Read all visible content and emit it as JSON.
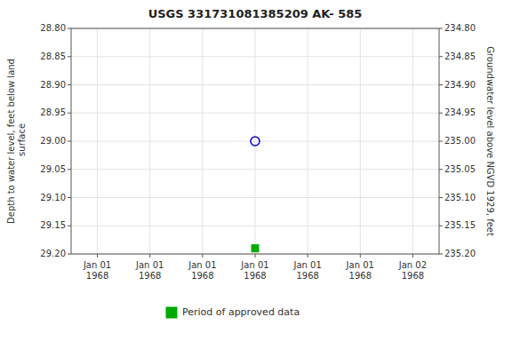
{
  "chart_data": {
    "type": "scatter",
    "title": "USGS 331731081385209 AK- 585",
    "y_label": "Depth to water level, feet below land\n surface",
    "y2_label": "Groundwater level above NGVD 1929, feet",
    "categories": [
      "Jan 01\n1968",
      "Jan 01\n1968",
      "Jan 01\n1968",
      "Jan 01\n1968",
      "Jan 01\n1968",
      "Jan 01\n1968",
      "Jan 02\n1968"
    ],
    "series": [
      {
        "values": [
          null,
          null,
          null,
          29.0,
          null,
          null,
          null
        ],
        "color": "#0000cc",
        "marker": "open-circle"
      },
      {
        "name": "Period of approved data",
        "values": [
          null,
          null,
          null,
          29.19,
          null,
          null,
          null
        ],
        "color": "#00aa00",
        "marker": "square"
      }
    ],
    "ylim": [
      29.2,
      28.8
    ],
    "yticks": [
      {
        "value": 28.8,
        "label": "28.80"
      },
      {
        "value": 28.85,
        "label": "28.85"
      },
      {
        "value": 28.9,
        "label": "28.90"
      },
      {
        "value": 28.95,
        "label": "28.95"
      },
      {
        "value": 29.0,
        "label": "29.00"
      },
      {
        "value": 29.05,
        "label": "29.05"
      },
      {
        "value": 29.1,
        "label": "29.10"
      },
      {
        "value": 29.15,
        "label": "29.15"
      },
      {
        "value": 29.2,
        "label": "29.20"
      }
    ],
    "y2lim": [
      235.2,
      234.8
    ],
    "y2ticks": [
      {
        "value": 234.8,
        "label": "234.80"
      },
      {
        "value": 234.85,
        "label": "234.85"
      },
      {
        "value": 234.9,
        "label": "234.90"
      },
      {
        "value": 234.95,
        "label": "234.95"
      },
      {
        "value": 235.0,
        "label": "235.00"
      },
      {
        "value": 235.05,
        "label": "235.05"
      },
      {
        "value": 235.1,
        "label": "235.10"
      },
      {
        "value": 235.15,
        "label": "235.15"
      },
      {
        "value": 235.2,
        "label": "235.20"
      }
    ],
    "grid": true,
    "legend": "bottom"
  }
}
